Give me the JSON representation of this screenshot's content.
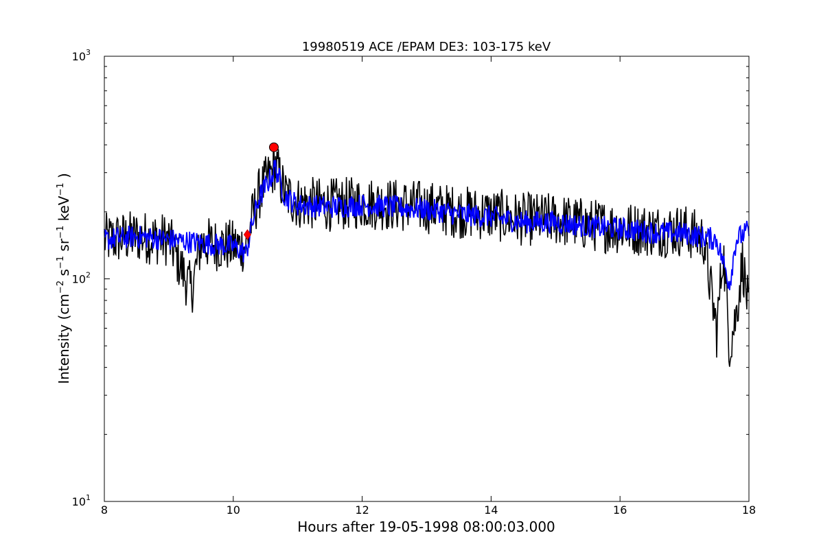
{
  "chart_data": {
    "type": "line",
    "title": "19980519 ACE /EPAM DE3: 103-175 keV",
    "xlabel": "Hours after 19-05-1998 08:00:03.000",
    "ylabel_parts": {
      "prefix": "Intensity (cm",
      "exp1": "−2",
      "s": " s",
      "exp2": "−1",
      "sr": " sr",
      "exp3": "−1",
      "kev": " keV",
      "exp4": "−1",
      "suffix": " )"
    },
    "xlim": [
      8,
      18
    ],
    "ylim": [
      10,
      1000
    ],
    "yscale": "log",
    "grid": false,
    "x_ticks": [
      "8",
      "10",
      "12",
      "14",
      "16",
      "18"
    ],
    "y_ticks": [
      {
        "base": "10",
        "exp": "1"
      },
      {
        "base": "10",
        "exp": "2"
      },
      {
        "base": "10",
        "exp": "3"
      }
    ],
    "series": [
      {
        "color": "#000000",
        "x": [
          8.0,
          8.5,
          9.0,
          9.35,
          9.5,
          10.0,
          10.2,
          10.3,
          10.4,
          10.5,
          10.6,
          10.65,
          10.8,
          11.0,
          11.5,
          12.0,
          12.5,
          13.0,
          13.5,
          14.0,
          14.5,
          15.0,
          15.5,
          16.0,
          16.5,
          17.0,
          17.3,
          17.5,
          17.6,
          17.7,
          17.8,
          17.9,
          18.0
        ],
        "y": [
          150,
          155,
          150,
          88,
          145,
          140,
          140,
          190,
          240,
          270,
          300,
          330,
          240,
          220,
          215,
          220,
          215,
          210,
          200,
          195,
          185,
          185,
          175,
          170,
          165,
          165,
          150,
          58,
          135,
          50,
          68,
          120,
          70
        ],
        "noise": 0.28
      },
      {
        "color": "#0000ff",
        "x": [
          8.0,
          8.5,
          9.0,
          9.5,
          10.0,
          10.2,
          10.3,
          10.4,
          10.5,
          10.6,
          10.65,
          10.8,
          11.0,
          11.5,
          12.0,
          12.5,
          13.0,
          13.5,
          14.0,
          14.5,
          15.0,
          15.5,
          16.0,
          16.5,
          17.0,
          17.5,
          17.7,
          17.8,
          18.0
        ],
        "y": [
          150,
          155,
          150,
          145,
          140,
          130,
          180,
          230,
          260,
          290,
          320,
          235,
          215,
          210,
          215,
          210,
          205,
          195,
          190,
          180,
          180,
          172,
          168,
          162,
          160,
          150,
          95,
          150,
          165
        ],
        "noise": 0.12
      }
    ],
    "markers": [
      {
        "x": 10.22,
        "y": 158,
        "style": "diamond",
        "color": "#ff0000"
      },
      {
        "x": 10.63,
        "y": 390,
        "style": "circle",
        "color": "#ff0000"
      }
    ]
  }
}
